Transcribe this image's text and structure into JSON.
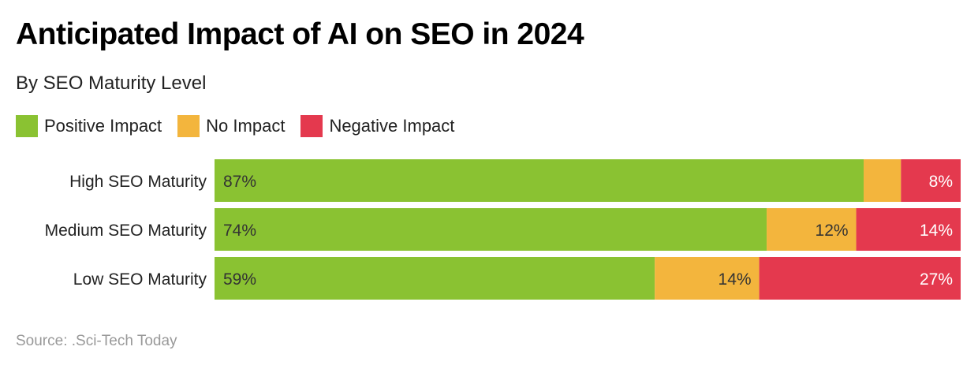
{
  "chart_data": {
    "type": "bar",
    "orientation": "horizontal",
    "stacked": true,
    "title": "Anticipated Impact of AI on SEO in 2024",
    "subtitle": "By SEO Maturity Level",
    "categories": [
      "High SEO Maturity",
      "Medium SEO Maturity",
      "Low SEO Maturity"
    ],
    "series": [
      {
        "name": "Positive Impact",
        "color": "#8AC232",
        "label_color": "#333333",
        "values": [
          87,
          74,
          59
        ],
        "labels": [
          "87%",
          "74%",
          "59%"
        ]
      },
      {
        "name": "No Impact",
        "color": "#F3B53D",
        "label_color": "#333333",
        "values": [
          5,
          12,
          14
        ],
        "labels": [
          "",
          "12%",
          "14%"
        ]
      },
      {
        "name": "Negative Impact",
        "color": "#E4394E",
        "label_color": "#FFFFFF",
        "values": [
          8,
          14,
          27
        ],
        "labels": [
          "8%",
          "14%",
          "27%"
        ]
      }
    ],
    "xlim": [
      0,
      100
    ],
    "grid": false,
    "legend": "top-left",
    "source": "Source: .Sci-Tech Today"
  }
}
